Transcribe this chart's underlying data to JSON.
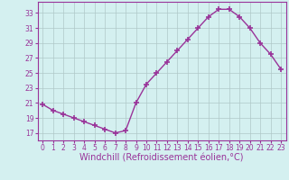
{
  "x": [
    0,
    1,
    2,
    3,
    4,
    5,
    6,
    7,
    8,
    9,
    10,
    11,
    12,
    13,
    14,
    15,
    16,
    17,
    18,
    19,
    20,
    21,
    22,
    23
  ],
  "y": [
    20.8,
    20.0,
    19.5,
    19.0,
    18.5,
    18.0,
    17.5,
    17.0,
    17.3,
    21.0,
    23.5,
    25.0,
    26.5,
    28.0,
    29.5,
    31.0,
    32.5,
    33.5,
    33.5,
    32.5,
    31.0,
    29.0,
    27.5,
    25.5
  ],
  "line_color": "#993399",
  "marker": "+",
  "bg_color": "#d4f0f0",
  "grid_color": "#b0c8c8",
  "xlabel": "Windchill (Refroidissement éolien,°C)",
  "xlim": [
    -0.5,
    23.5
  ],
  "ylim": [
    16.0,
    34.5
  ],
  "yticks": [
    17,
    19,
    21,
    23,
    25,
    27,
    29,
    31,
    33
  ],
  "xticks": [
    0,
    1,
    2,
    3,
    4,
    5,
    6,
    7,
    8,
    9,
    10,
    11,
    12,
    13,
    14,
    15,
    16,
    17,
    18,
    19,
    20,
    21,
    22,
    23
  ],
  "tick_label_fontsize": 5.5,
  "xlabel_fontsize": 7.0,
  "line_width": 1.0,
  "marker_size": 4.5,
  "marker_edge_width": 1.2
}
